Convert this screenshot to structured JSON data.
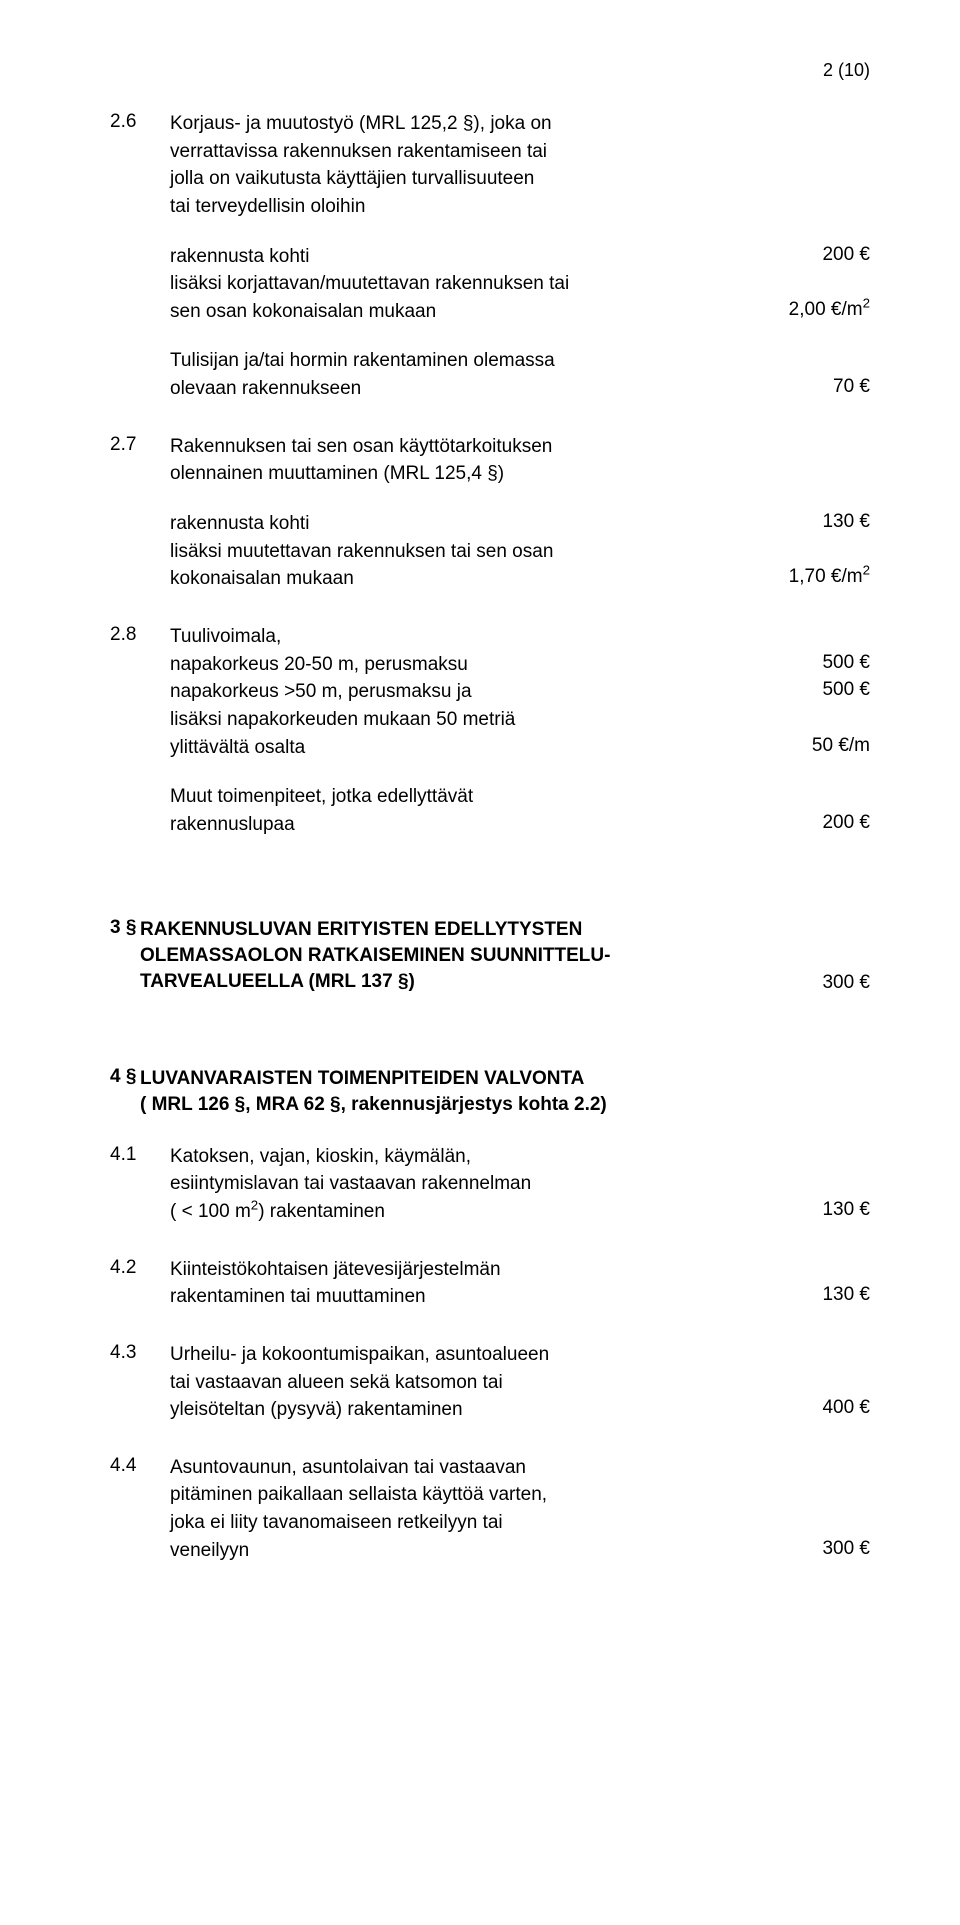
{
  "page_number": "2 (10)",
  "font": {
    "body_size": 19,
    "heading_weight": "bold",
    "color": "#000000",
    "bg": "#ffffff"
  },
  "s26": {
    "num": "2.6",
    "intro": [
      "Korjaus- ja muutostyö (MRL 125,2 §), joka on",
      "verrattavissa rakennuksen rakentamiseen tai",
      "jolla on vaikutusta käyttäjien turvallisuuteen",
      "tai terveydellisin oloihin"
    ],
    "l1": {
      "text": "rakennusta kohti",
      "price": "200 €"
    },
    "l2a": "lisäksi korjattavan/muutettavan rakennuksen tai",
    "l2b": {
      "text": "sen osan kokonaisalan mukaan",
      "price_html": "2,00 €/m<sup>2</sup>"
    },
    "l3a": "Tulisijan ja/tai hormin rakentaminen olemassa",
    "l3b": {
      "text": "olevaan rakennukseen",
      "price": "70 €"
    }
  },
  "s27": {
    "num": "2.7",
    "intro": [
      "Rakennuksen tai sen osan käyttötarkoituksen",
      "olennainen muuttaminen (MRL 125,4 §)"
    ],
    "l1": {
      "text": "rakennusta kohti",
      "price": "130 €"
    },
    "l2a": "lisäksi muutettavan rakennuksen tai sen osan",
    "l2b": {
      "text": "kokonaisalan mukaan",
      "price_html": "1,70 €/m<sup>2</sup>"
    }
  },
  "s28": {
    "num": "2.8",
    "l1": "Tuulivoimala,",
    "l2": {
      "text": "napakorkeus 20-50 m, perusmaksu",
      "price": "500 €"
    },
    "l3": {
      "text": "napakorkeus >50 m, perusmaksu ja",
      "price": "500 €"
    },
    "l4": "lisäksi napakorkeuden mukaan 50 metriä",
    "l5": {
      "text": "ylittävältä osalta",
      "price": "50 €/m"
    },
    "l6": "Muut toimenpiteet, jotka edellyttävät",
    "l7": {
      "text": "rakennuslupaa",
      "price": "200 €"
    }
  },
  "h3": {
    "num": "3 §",
    "lines": [
      "RAKENNUSLUVAN ERITYISTEN EDELLYTYSTEN",
      "OLEMASSAOLON RATKAISEMINEN SUUNNITTELU-",
      "TARVEALUEELLA (MRL 137 §)"
    ],
    "price": "300 €"
  },
  "h4": {
    "num": "4 §",
    "lines": [
      "LUVANVARAISTEN TOIMENPITEIDEN VALVONTA",
      "( MRL 126 §, MRA  62 §, rakennusjärjestys kohta 2.2)"
    ]
  },
  "s41": {
    "num": "4.1",
    "lines": [
      "Katoksen, vajan, kioskin, käymälän,",
      "esiintymislavan tai vastaavan rakennelman"
    ],
    "last_html": "( &lt; 100 m<sup>2</sup>) rakentaminen",
    "price": "130 €"
  },
  "s42": {
    "num": "4.2",
    "lines": [
      "Kiinteistökohtaisen jätevesijärjestelmän"
    ],
    "last": "rakentaminen tai muuttaminen",
    "price": "130 €"
  },
  "s43": {
    "num": "4.3",
    "lines": [
      "Urheilu- ja kokoontumispaikan, asuntoalueen",
      "tai vastaavan alueen sekä katsomon tai"
    ],
    "last": "yleisöteltan (pysyvä) rakentaminen",
    "price": "400 €"
  },
  "s44": {
    "num": "4.4",
    "lines": [
      "Asuntovaunun, asuntolaivan tai vastaavan",
      "pitäminen paikallaan sellaista käyttöä varten,",
      "joka ei liity tavanomaiseen retkeilyyn tai"
    ],
    "last": "veneilyyn",
    "price": "300 €"
  }
}
